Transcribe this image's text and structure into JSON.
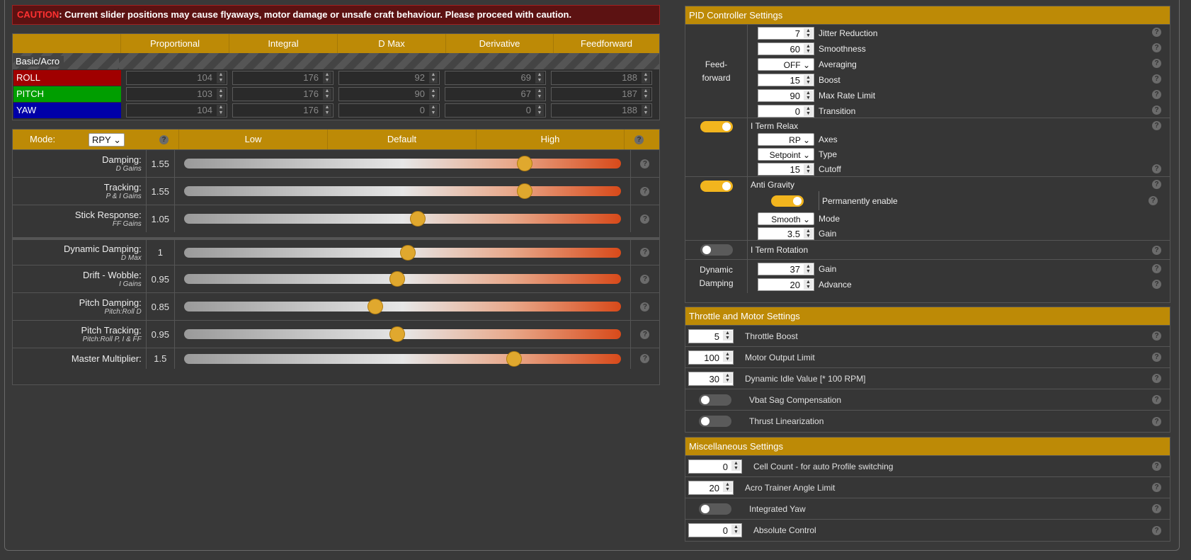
{
  "caution": {
    "label": "CAUTION",
    "text": ": Current slider positions may cause flyaways, motor damage or unsafe craft behaviour. Please proceed with caution."
  },
  "pid_table": {
    "columns": [
      "Proportional",
      "Integral",
      "D Max",
      "Derivative",
      "Feedforward"
    ],
    "section": "Basic/Acro",
    "rows": [
      {
        "axis": "ROLL",
        "color": "#a00000",
        "values": [
          "104",
          "176",
          "92",
          "69",
          "188"
        ]
      },
      {
        "axis": "PITCH",
        "color": "#009e00",
        "values": [
          "103",
          "176",
          "90",
          "67",
          "187"
        ]
      },
      {
        "axis": "YAW",
        "color": "#0000a8",
        "values": [
          "104",
          "176",
          "0",
          "0",
          "188"
        ]
      }
    ]
  },
  "sliders": {
    "mode_label": "Mode:",
    "mode_value": "RPY",
    "columns": [
      "Low",
      "Default",
      "High"
    ],
    "items": [
      {
        "label": "Damping:",
        "sub": "D Gains",
        "value": "1.55",
        "pos": 0.762
      },
      {
        "label": "Tracking:",
        "sub": "P & I Gains",
        "value": "1.55",
        "pos": 0.762
      },
      {
        "label": "Stick Response:",
        "sub": "FF Gains",
        "value": "1.05",
        "pos": 0.523
      },
      {
        "label": "Dynamic Damping:",
        "sub": "D Max",
        "value": "1",
        "pos": 0.5
      },
      {
        "label": "Drift - Wobble:",
        "sub": "I Gains",
        "value": "0.95",
        "pos": 0.476
      },
      {
        "label": "Pitch Damping:",
        "sub": "Pitch:Roll D",
        "value": "0.85",
        "pos": 0.428
      },
      {
        "label": "Pitch Tracking:",
        "sub": "Pitch:Roll P, I & FF",
        "value": "0.95",
        "pos": 0.476
      },
      {
        "label": "Master Multiplier:",
        "sub": "",
        "value": "1.5",
        "pos": 0.738
      }
    ]
  },
  "pid_settings": {
    "title": "PID Controller Settings",
    "feedforward_label": "Feed-\nforward",
    "ff": [
      {
        "value": "7",
        "label": "Jitter Reduction"
      },
      {
        "value": "60",
        "label": "Smoothness"
      },
      {
        "value": "OFF",
        "label": "Averaging"
      },
      {
        "value": "15",
        "label": "Boost"
      },
      {
        "value": "90",
        "label": "Max Rate Limit"
      },
      {
        "value": "0",
        "label": "Transition"
      }
    ],
    "iterm_relax": {
      "label": "I Term Relax",
      "axes_value": "RP",
      "axes_label": "Axes",
      "type_value": "Setpoint",
      "type_label": "Type",
      "cutoff_value": "15",
      "cutoff_label": "Cutoff"
    },
    "anti_gravity": {
      "label": "Anti Gravity",
      "perm_label": "Permanently enable",
      "mode_value": "Smooth",
      "mode_label": "Mode",
      "gain_value": "3.5",
      "gain_label": "Gain"
    },
    "iterm_rotation": {
      "label": "I Term Rotation"
    },
    "dyn_damping": {
      "label": "Dynamic Damping",
      "gain_value": "37",
      "gain_label": "Gain",
      "adv_value": "20",
      "adv_label": "Advance"
    }
  },
  "throttle": {
    "title": "Throttle and Motor Settings",
    "boost_value": "5",
    "boost_label": "Throttle Boost",
    "limit_value": "100",
    "limit_label": "Motor Output Limit",
    "idle_value": "30",
    "idle_label": "Dynamic Idle Value [* 100 RPM]",
    "vbat_label": "Vbat Sag Compensation",
    "thrust_label": "Thrust Linearization"
  },
  "misc": {
    "title": "Miscellaneous Settings",
    "cell_value": "0",
    "cell_label": "Cell Count - for auto Profile switching",
    "acro_value": "20",
    "acro_label": "Acro Trainer Angle Limit",
    "yaw_label": "Integrated Yaw",
    "abs_value": "0",
    "abs_label": "Absolute Control"
  },
  "icons": {
    "help": "question-icon",
    "spinner": "spinner-arrows-icon"
  },
  "colors": {
    "accent": "#bd8a06",
    "toggle_on": "#f2b51e",
    "slider_knob": "#e0a82e"
  }
}
